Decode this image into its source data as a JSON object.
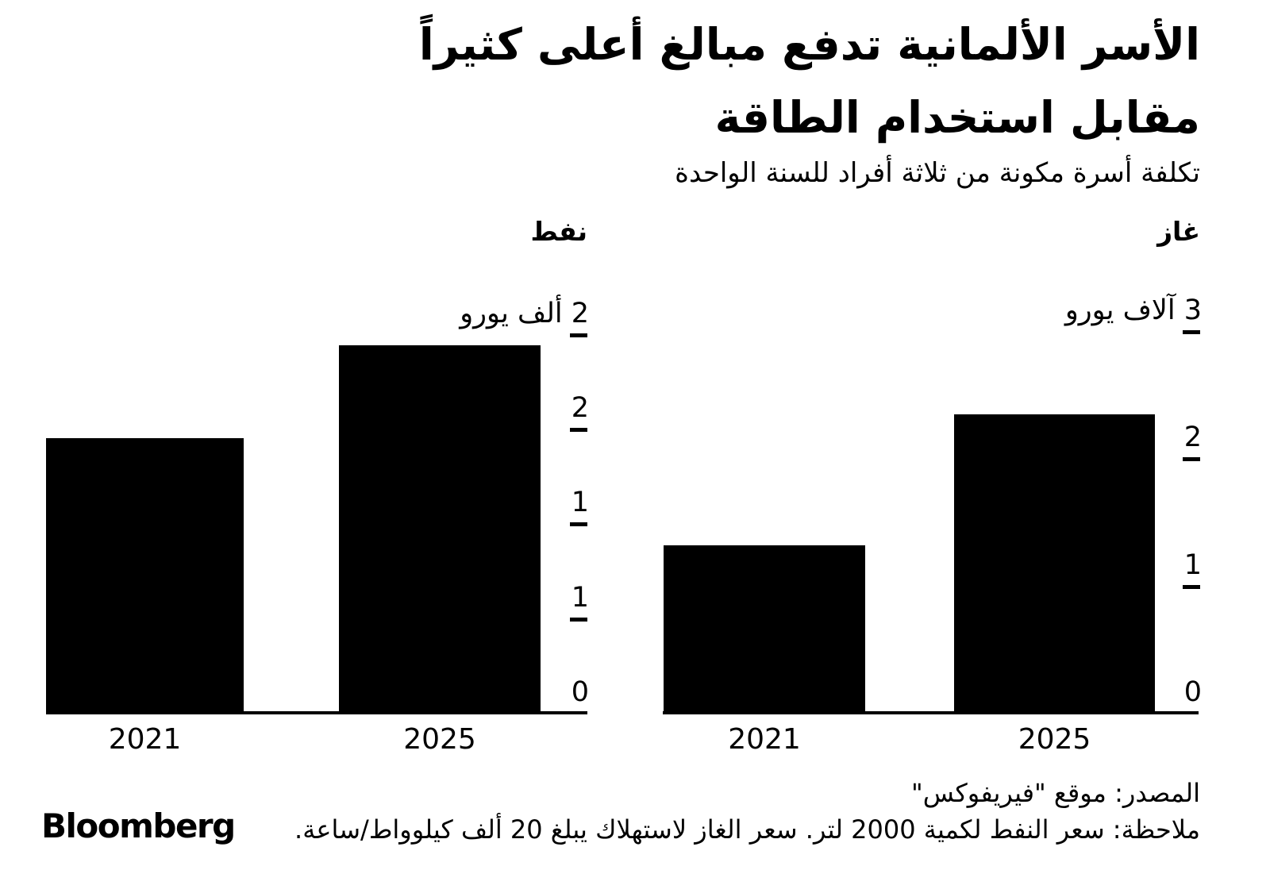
{
  "header": {
    "title_line1": "الأسر الألمانية تدفع مبالغ أعلى كثيراً",
    "title_line2": "مقابل استخدام الطاقة",
    "subtitle": "تكلفة أسرة مكونة من ثلاثة أفراد للسنة الواحدة"
  },
  "footer": {
    "source": "المصدر: موقع \"فيريفوكس\"",
    "note": "ملاحظة: سعر النفط لكمية 2000 لتر. سعر الغاز لاستهلاك يبلغ 20 ألف كيلوواط/ساعة.",
    "logo": "Bloomberg"
  },
  "colors": {
    "bar": "#000000",
    "text": "#000000",
    "background": "#ffffff"
  },
  "chart_data": [
    {
      "type": "bar",
      "title": "نفط",
      "categories": [
        "2021",
        "2025"
      ],
      "values": [
        1460,
        1950
      ],
      "unit_label": "يورو",
      "ylim": [
        0,
        2000
      ],
      "grid": false,
      "legend": "none",
      "yticks": [
        {
          "value": 2000,
          "label": "2 ألف يورو"
        },
        {
          "value": 1500,
          "label": "2"
        },
        {
          "value": 1000,
          "label": "1"
        },
        {
          "value": 500,
          "label": "1"
        },
        {
          "value": 0,
          "label": "0"
        }
      ]
    },
    {
      "type": "bar",
      "title": "غاز",
      "categories": [
        "2021",
        "2025"
      ],
      "values": [
        1330,
        2360
      ],
      "unit_label": "يورو",
      "ylim": [
        0,
        3000
      ],
      "grid": false,
      "legend": "none",
      "yticks": [
        {
          "value": 3000,
          "label": "3 آلاف يورو"
        },
        {
          "value": 2000,
          "label": "2"
        },
        {
          "value": 1000,
          "label": "1"
        },
        {
          "value": 0,
          "label": "0"
        }
      ]
    }
  ]
}
